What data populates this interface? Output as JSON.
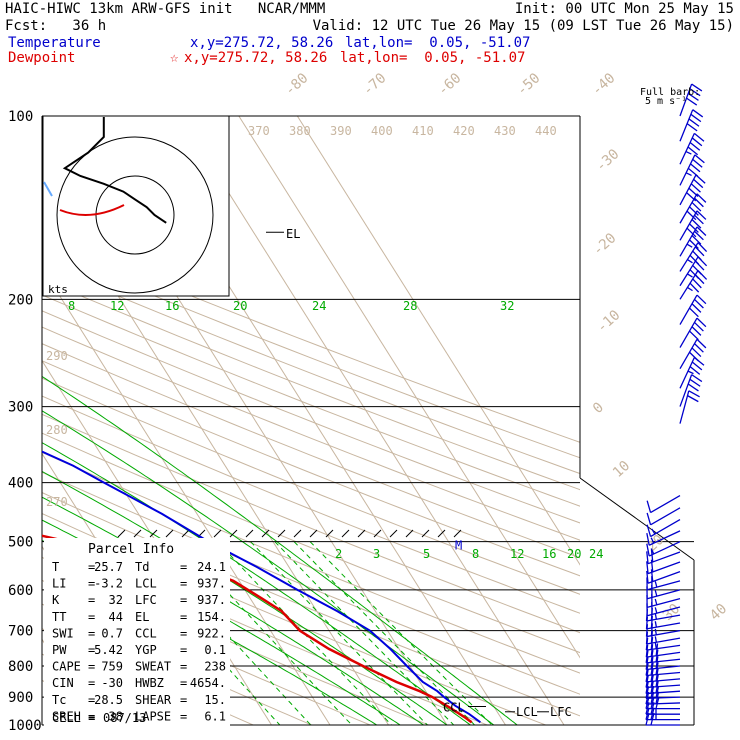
{
  "header": {
    "line1_left": "HAIC-HIWC 13km ARW-GFS init   NCAR/MMM",
    "line1_right": "Init: 00 UTC Mon 25 May 15",
    "line2_left": "Fcst:   36 h",
    "line2_right": "Valid: 12 UTC Tue 26 May 15 (09 LST Tue 26 May 15)",
    "temp_label": "Temperature",
    "temp_xy": "x,y=275.72, 58.26",
    "temp_latlon": "lat,lon=  0.05, -51.07",
    "dew_label": "Dewpoint",
    "dew_xy": "x,y=275.72, 58.26",
    "dew_latlon": "lat,lon=  0.05, -51.07",
    "star_glyph": "☆"
  },
  "colors": {
    "temperature": "#0000dd",
    "dewpoint": "#dd0000",
    "isotherm": "#c8b6a0",
    "mixing_ratio": "#00aa00",
    "moist_adiabat": "#00aa00",
    "dry_adiabat": "#c8b6a0",
    "isobar": "#000000",
    "wind_barb": "#0000cc",
    "hodograph": "#000000"
  },
  "chart_data": {
    "type": "line",
    "pressure_levels": [
      100,
      200,
      300,
      400,
      500,
      600,
      700,
      800,
      900,
      1000
    ],
    "isotherm_labels": [
      "-80",
      "-70",
      "-60",
      "-50",
      "-40",
      "-30",
      "-20",
      "-10",
      "0",
      "10",
      "20",
      "30",
      "40"
    ],
    "theta_labels": [
      "370",
      "380",
      "390",
      "400",
      "410",
      "420",
      "430",
      "440"
    ],
    "theta_side_labels": [
      "290",
      "280",
      "270"
    ],
    "mixing_ratio_upper": [
      "8",
      "12",
      "16",
      "20",
      "24",
      "28",
      "32"
    ],
    "mixing_ratio_lower": [
      "2",
      "3",
      "5",
      "8",
      "12",
      "16",
      "20",
      "24"
    ],
    "series": [
      {
        "name": "Temperature",
        "points": [
          [
            100,
            -73.5
          ],
          [
            110,
            -77
          ],
          [
            130,
            -76
          ],
          [
            150,
            -71
          ],
          [
            175,
            -65
          ],
          [
            200,
            -59
          ],
          [
            250,
            -47.5
          ],
          [
            300,
            -32.5
          ],
          [
            340,
            -23
          ],
          [
            375,
            -16
          ],
          [
            400,
            -12.5
          ],
          [
            450,
            -6
          ],
          [
            500,
            -1
          ],
          [
            550,
            4.5
          ],
          [
            600,
            9
          ],
          [
            650,
            13.5
          ],
          [
            700,
            17
          ],
          [
            750,
            18.5
          ],
          [
            800,
            19.5
          ],
          [
            850,
            20.5
          ],
          [
            880,
            22
          ],
          [
            900,
            22.5
          ],
          [
            930,
            23.5
          ],
          [
            960,
            25
          ],
          [
            990,
            26
          ]
        ]
      },
      {
        "name": "Dewpoint",
        "points": [
          [
            100,
            -87
          ],
          [
            110,
            -89
          ],
          [
            130,
            -90
          ],
          [
            160,
            -88
          ],
          [
            180,
            -85
          ],
          [
            200,
            -84
          ],
          [
            220,
            -83
          ],
          [
            250,
            -80
          ],
          [
            280,
            -78
          ],
          [
            300,
            -78
          ],
          [
            310,
            -76
          ],
          [
            330,
            -62
          ],
          [
            360,
            -50
          ],
          [
            380,
            -49
          ],
          [
            400,
            -51
          ],
          [
            420,
            -50
          ],
          [
            450,
            -44
          ],
          [
            480,
            -32
          ],
          [
            500,
            -25
          ],
          [
            520,
            -17
          ],
          [
            550,
            -6
          ],
          [
            580,
            -1
          ],
          [
            620,
            2
          ],
          [
            650,
            4
          ],
          [
            700,
            5
          ],
          [
            750,
            8
          ],
          [
            800,
            12
          ],
          [
            850,
            16
          ],
          [
            880,
            19
          ],
          [
            900,
            20.5
          ],
          [
            940,
            22.5
          ],
          [
            970,
            23.8
          ],
          [
            990,
            24.5
          ]
        ]
      }
    ],
    "markers": [
      {
        "label": "EL",
        "p": 154
      },
      {
        "label": "M",
        "p": 500
      },
      {
        "label": "CCL",
        "p": 922
      },
      {
        "label": "LCL",
        "p": 937
      },
      {
        "label": "LFC",
        "p": 937
      }
    ],
    "winds_ms": [
      [
        100,
        20,
        40
      ],
      [
        110,
        22,
        40
      ],
      [
        120,
        25,
        45
      ],
      [
        130,
        26,
        45
      ],
      [
        140,
        28,
        50
      ],
      [
        150,
        30,
        50
      ],
      [
        160,
        30,
        50
      ],
      [
        170,
        30,
        45
      ],
      [
        180,
        32,
        45
      ],
      [
        190,
        32,
        45
      ],
      [
        200,
        32,
        45
      ],
      [
        220,
        30,
        40
      ],
      [
        240,
        30,
        40
      ],
      [
        260,
        30,
        40
      ],
      [
        280,
        25,
        35
      ],
      [
        300,
        20,
        30
      ],
      [
        320,
        15,
        20
      ],
      [
        420,
        240,
        10
      ],
      [
        440,
        240,
        12
      ],
      [
        460,
        240,
        14
      ],
      [
        480,
        245,
        14
      ],
      [
        500,
        245,
        16
      ],
      [
        520,
        250,
        18
      ],
      [
        540,
        250,
        20
      ],
      [
        560,
        250,
        22
      ],
      [
        580,
        255,
        24
      ],
      [
        600,
        255,
        24
      ],
      [
        620,
        255,
        25
      ],
      [
        640,
        255,
        26
      ],
      [
        660,
        260,
        26
      ],
      [
        680,
        260,
        26
      ],
      [
        700,
        260,
        26
      ],
      [
        720,
        260,
        26
      ],
      [
        740,
        262,
        27
      ],
      [
        760,
        262,
        28
      ],
      [
        780,
        264,
        28
      ],
      [
        800,
        264,
        28
      ],
      [
        820,
        265,
        29
      ],
      [
        840,
        265,
        29
      ],
      [
        860,
        266,
        29
      ],
      [
        880,
        266,
        29
      ],
      [
        900,
        268,
        30
      ],
      [
        920,
        268,
        30
      ],
      [
        940,
        270,
        28
      ],
      [
        960,
        270,
        26
      ],
      [
        980,
        270,
        24
      ],
      [
        1000,
        270,
        22
      ]
    ],
    "hodograph": {
      "rings_kts": [
        10,
        20
      ],
      "ring_label": "kts",
      "u_kts": [
        8,
        5,
        3,
        0,
        -3,
        -8,
        -14,
        -18,
        -12,
        -8,
        -8,
        -20,
        -30
      ],
      "v_kts": [
        -2,
        0,
        2,
        4,
        6,
        8,
        10,
        12,
        16,
        20,
        26,
        30,
        32
      ]
    }
  },
  "barb_legend": {
    "title": "Full barb:",
    "value": "5 m s⁻¹"
  },
  "parcel": {
    "title": "Parcel Info",
    "rows": [
      {
        "label_a": "T",
        "val_a": "25.7",
        "label_b": "Td",
        "val_b": "24.1"
      },
      {
        "label_a": "LI",
        "val_a": "-3.2",
        "label_b": "LCL",
        "val_b": "937."
      },
      {
        "label_a": "K",
        "val_a": "32",
        "label_b": "LFC",
        "val_b": "937."
      },
      {
        "label_a": "TT",
        "val_a": "44",
        "label_b": "EL",
        "val_b": "154."
      },
      {
        "label_a": "SWI",
        "val_a": "0.7",
        "label_b": "CCL",
        "val_b": "922."
      },
      {
        "label_a": "PW",
        "val_a": "5.42",
        "label_b": "YGP",
        "val_b": "0.1"
      },
      {
        "label_a": "CAPE",
        "val_a": "759",
        "label_b": "SWEAT",
        "val_b": "238"
      },
      {
        "label_a": "CIN",
        "val_a": "-30",
        "label_b": "HWBZ",
        "val_b": "4654."
      },
      {
        "label_a": "Tc",
        "val_a": "28.5",
        "label_b": "SHEAR",
        "val_b": "15."
      },
      {
        "label_a": "SREH",
        "val_a": "38",
        "label_b": "LAPSE",
        "val_b": "6.1"
      }
    ],
    "cell_label": "CELL =",
    "cell_value": "087/13"
  }
}
